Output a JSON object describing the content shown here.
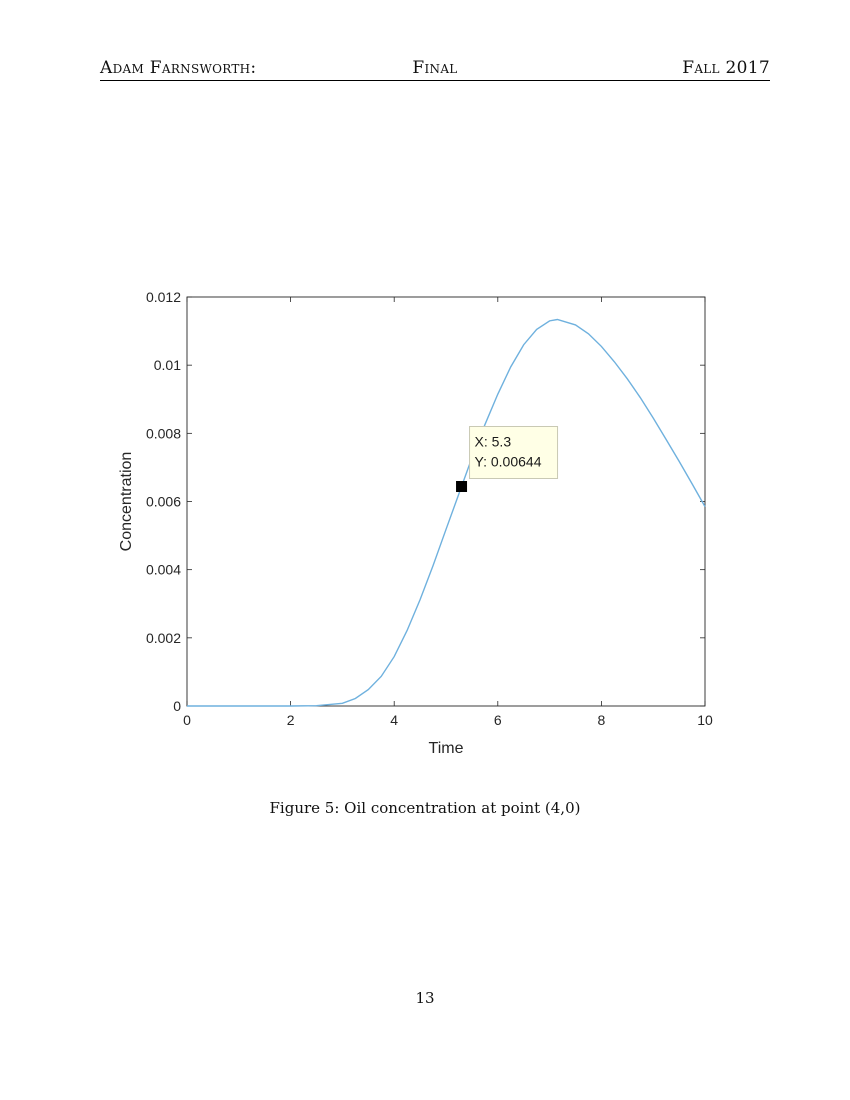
{
  "header": {
    "left": "Adam Farnsworth:",
    "center": "Final",
    "right": "Fall 2017"
  },
  "figure": {
    "caption": "Figure 5: Oil concentration at point (4,0)",
    "datatip": {
      "x_text": "X: 5.3",
      "y_text": "Y: 0.00644"
    }
  },
  "page_number": "13",
  "chart_data": {
    "type": "line",
    "xlabel": "Time",
    "ylabel": "Concentration",
    "xlim": [
      0,
      10
    ],
    "ylim": [
      0,
      0.012
    ],
    "x_ticks": [
      0,
      2,
      4,
      6,
      8,
      10
    ],
    "y_ticks": [
      0,
      0.002,
      0.004,
      0.006,
      0.008,
      0.01,
      0.012
    ],
    "x_tick_labels": [
      "0",
      "2",
      "4",
      "6",
      "8",
      "10"
    ],
    "y_tick_labels": [
      "0",
      "0.002",
      "0.004",
      "0.006",
      "0.008",
      "0.01",
      "0.012"
    ],
    "grid": false,
    "line_color": "#6fb1de",
    "series": [
      {
        "x": [
          0,
          1,
          2,
          2.5,
          3,
          3.25,
          3.5,
          3.75,
          4,
          4.25,
          4.5,
          4.75,
          5,
          5.3,
          5.5,
          5.75,
          6,
          6.25,
          6.5,
          6.75,
          7,
          7.15,
          7.5,
          7.75,
          8,
          8.25,
          8.5,
          8.75,
          9,
          9.25,
          9.5,
          9.75,
          10
        ],
        "y": [
          0,
          0,
          0,
          1e-05,
          8e-05,
          0.00022,
          0.00048,
          0.00087,
          0.00145,
          0.00222,
          0.00312,
          0.00412,
          0.00518,
          0.00644,
          0.00728,
          0.00825,
          0.00915,
          0.00995,
          0.0106,
          0.01105,
          0.0113,
          0.01134,
          0.01118,
          0.01092,
          0.01055,
          0.0101,
          0.0096,
          0.00905,
          0.00845,
          0.00782,
          0.00718,
          0.00652,
          0.00585
        ]
      }
    ],
    "highlight_point": {
      "x": 5.3,
      "y": 0.00644
    }
  }
}
